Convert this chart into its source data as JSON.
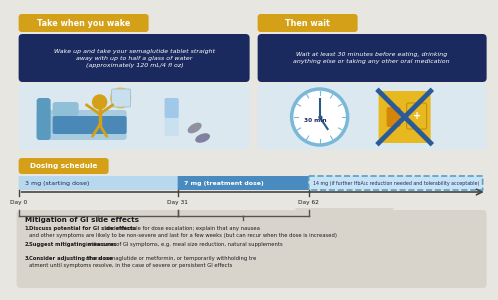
{
  "bg_color": "#e8e6e0",
  "dark_blue": "#1b2a5e",
  "gold": "#d4a017",
  "gold_dark": "#c49010",
  "light_blue_panel": "#dce8f0",
  "mid_blue": "#4a8bbf",
  "light_blue_bar": "#b8d8ee",
  "dashed_blue_bar": "#5a9ec8",
  "text_dark": "#1a1a1a",
  "text_white": "#ffffff",
  "gray_panel": "#d4d0c8",
  "gi_box": "#d8d4cc",
  "box1_header": "Take when you wake",
  "box1_text": "Wake up and take your semaglutide tablet straight\naway with up to half a glass of water\n(approximately 120 mL/4 fl oz)",
  "box2_header": "Then wait",
  "box2_text": "Wait at least 30 minutes before eating, drinking\nanything else or taking any other oral medication",
  "dosing_header": "Dosing schedule",
  "dose1_label": "3 mg (starting dose)",
  "dose2_label": "7 mg (treatment dose)",
  "dose3_label": "14 mg (if further HbA₁c reduction needed and tolerability acceptable)",
  "day0": "Day 0",
  "day31": "Day 31",
  "day62": "Day 62",
  "gi_title": "Mitigation of GI side effects",
  "gi_p1_bold": "Discuss potential for GI side effects",
  "gi_p1_rest": " and rationale for dose escalation; explain that any nausea and other symptoms are likely to be non-severe and last for a few weeks (but can recur when the dose is increased)",
  "gi_p2_bold": "Suggest mitigating measures",
  "gi_p2_rest": " in the case of GI symptoms, e.g. meal size reduction, natural supplements",
  "gi_p3_bold": "Consider adjusting the dose",
  "gi_p3_rest": " of oral semaglutide or metformin, or temporarily withholding treatment until symptoms resolve, in the case of severe or persistent GI effects",
  "icon_blue": "#7ab8d8",
  "icon_gold": "#d4a017",
  "icon_dark_blue": "#2a5a8a"
}
